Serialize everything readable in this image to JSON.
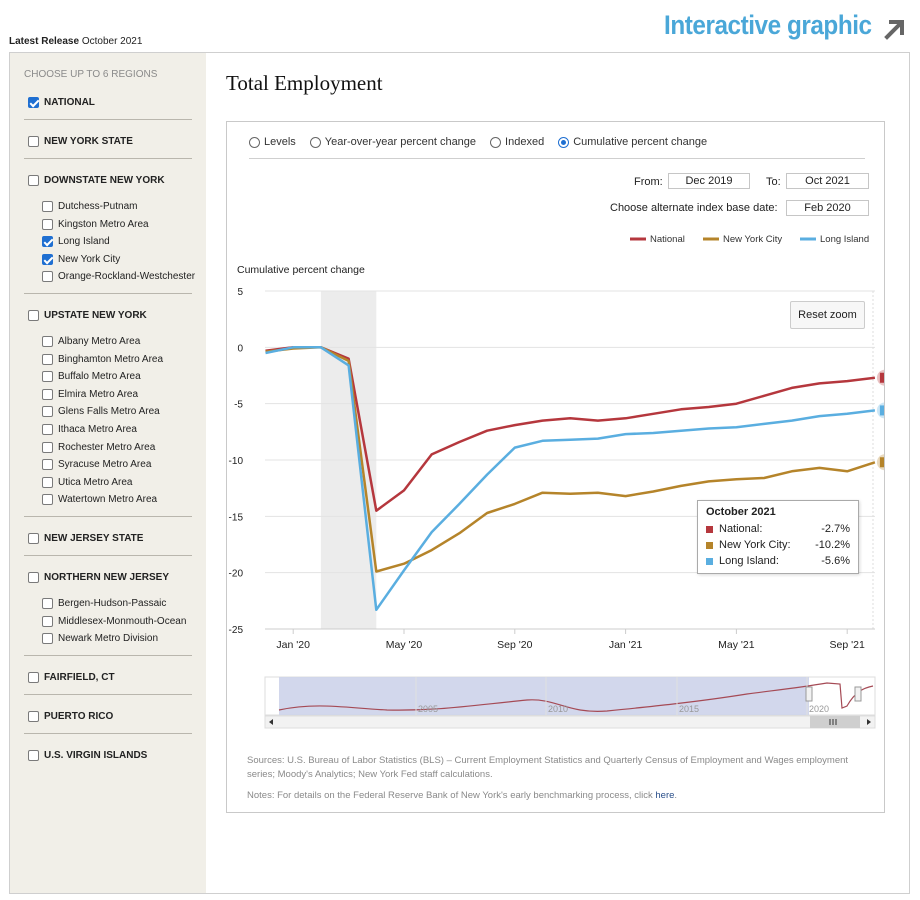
{
  "header": {
    "latest_label": "Latest Release",
    "latest_date": "October 2021",
    "interactive_label": "Interactive graphic",
    "accent_color": "#4aa7d8"
  },
  "sidebar": {
    "heading": "CHOOSE UP TO 6 REGIONS",
    "regions": [
      {
        "label": "NATIONAL",
        "checked": true
      },
      {
        "label": "NEW YORK STATE",
        "checked": false
      },
      {
        "label": "DOWNSTATE NEW YORK",
        "checked": false,
        "subs": [
          {
            "label": "Dutchess-Putnam",
            "checked": false
          },
          {
            "label": "Kingston Metro Area",
            "checked": false
          },
          {
            "label": "Long Island",
            "checked": true
          },
          {
            "label": "New York City",
            "checked": true
          },
          {
            "label": "Orange-Rockland-Westchester",
            "checked": false
          }
        ]
      },
      {
        "label": "UPSTATE NEW YORK",
        "checked": false,
        "subs": [
          {
            "label": "Albany Metro Area",
            "checked": false
          },
          {
            "label": "Binghamton Metro Area",
            "checked": false
          },
          {
            "label": "Buffalo Metro Area",
            "checked": false
          },
          {
            "label": "Elmira Metro Area",
            "checked": false
          },
          {
            "label": "Glens Falls Metro Area",
            "checked": false
          },
          {
            "label": "Ithaca Metro Area",
            "checked": false
          },
          {
            "label": "Rochester Metro Area",
            "checked": false
          },
          {
            "label": "Syracuse Metro Area",
            "checked": false
          },
          {
            "label": "Utica Metro Area",
            "checked": false
          },
          {
            "label": "Watertown Metro Area",
            "checked": false
          }
        ]
      },
      {
        "label": "NEW JERSEY STATE",
        "checked": false
      },
      {
        "label": "NORTHERN NEW JERSEY",
        "checked": false,
        "subs": [
          {
            "label": "Bergen-Hudson-Passaic",
            "checked": false
          },
          {
            "label": "Middlesex-Monmouth-Ocean",
            "checked": false
          },
          {
            "label": "Newark Metro Division",
            "checked": false
          }
        ]
      },
      {
        "label": "FAIRFIELD, CT",
        "checked": false
      },
      {
        "label": "PUERTO RICO",
        "checked": false
      },
      {
        "label": "U.S. VIRGIN ISLANDS",
        "checked": false
      }
    ]
  },
  "main": {
    "title": "Total Employment",
    "radios": [
      {
        "label": "Levels",
        "selected": false
      },
      {
        "label": "Year-over-year percent change",
        "selected": false
      },
      {
        "label": "Indexed",
        "selected": false
      },
      {
        "label": "Cumulative percent change",
        "selected": true
      }
    ],
    "from_label": "From:",
    "from_value": "Dec 2019",
    "to_label": "To:",
    "to_value": "Oct 2021",
    "base_label": "Choose alternate index base date:",
    "base_value": "Feb 2020",
    "reset_zoom": "Reset zoom",
    "sources": "Sources: U.S. Bureau of Labor Statistics (BLS) – Current Employment Statistics and Quarterly Census of Employment and Wages employment series; Moody's Analytics; New York Fed staff calculations.",
    "notes_prefix": "Notes: For details on the Federal Reserve Bank of New York's early benchmarking process, click ",
    "notes_link": "here",
    "notes_suffix": "."
  },
  "tooltip": {
    "title": "October 2021",
    "rows": [
      {
        "name": "National:",
        "value": "-2.7%",
        "color": "#b5373d"
      },
      {
        "name": "New York City:",
        "value": "-10.2%",
        "color": "#b5842a"
      },
      {
        "name": "Long Island:",
        "value": "-5.6%",
        "color": "#5aaee0"
      }
    ]
  },
  "chart_data": {
    "type": "line",
    "ylabel": "Cumulative percent change",
    "ylim": [
      -25,
      5
    ],
    "yticks": [
      "5",
      "0",
      "-5",
      "-10",
      "-15",
      "-20",
      "-25"
    ],
    "ytick_values": [
      5,
      0,
      -5,
      -10,
      -15,
      -20,
      -25
    ],
    "x": [
      "Dec 2019",
      "Jan 2020",
      "Feb 2020",
      "Mar 2020",
      "Apr 2020",
      "May 2020",
      "Jun 2020",
      "Jul 2020",
      "Aug 2020",
      "Sep 2020",
      "Oct 2020",
      "Nov 2020",
      "Dec 2020",
      "Jan 2021",
      "Feb 2021",
      "Mar 2021",
      "Apr 2021",
      "May 2021",
      "Jun 2021",
      "Jul 2021",
      "Aug 2021",
      "Sep 2021",
      "Oct 2021"
    ],
    "xticks": [
      {
        "label": "Jan '20",
        "index": 1
      },
      {
        "label": "May '20",
        "index": 5
      },
      {
        "label": "Sep '20",
        "index": 9
      },
      {
        "label": "Jan '21",
        "index": 13
      },
      {
        "label": "May '21",
        "index": 17
      },
      {
        "label": "Sep '21",
        "index": 21
      }
    ],
    "recession_shade": [
      2,
      4
    ],
    "series": [
      {
        "name": "National",
        "color": "#b5373d",
        "values": [
          -0.3,
          0.0,
          0.0,
          -1.0,
          -14.5,
          -12.7,
          -9.5,
          -8.4,
          -7.4,
          -6.9,
          -6.5,
          -6.3,
          -6.5,
          -6.3,
          -5.9,
          -5.5,
          -5.3,
          -5.0,
          -4.3,
          -3.6,
          -3.2,
          -3.0,
          -2.7
        ]
      },
      {
        "name": "New York City",
        "color": "#b5842a",
        "values": [
          -0.4,
          -0.1,
          0.0,
          -1.2,
          -19.9,
          -19.2,
          -18.0,
          -16.5,
          -14.7,
          -13.9,
          -12.9,
          -13.0,
          -12.9,
          -13.2,
          -12.8,
          -12.3,
          -11.9,
          -11.7,
          -11.6,
          -11.0,
          -10.7,
          -11.0,
          -10.2
        ]
      },
      {
        "name": "Long Island",
        "color": "#5aaee0",
        "values": [
          -0.5,
          0.0,
          0.0,
          -1.6,
          -23.3,
          -19.8,
          -16.4,
          -13.9,
          -11.3,
          -8.9,
          -8.3,
          -8.2,
          -8.1,
          -7.7,
          -7.6,
          -7.4,
          -7.2,
          -7.1,
          -6.8,
          -6.5,
          -6.1,
          -5.9,
          -5.6
        ]
      }
    ],
    "navigator_ticks": [
      "2005",
      "2010",
      "2015",
      "2020"
    ]
  }
}
